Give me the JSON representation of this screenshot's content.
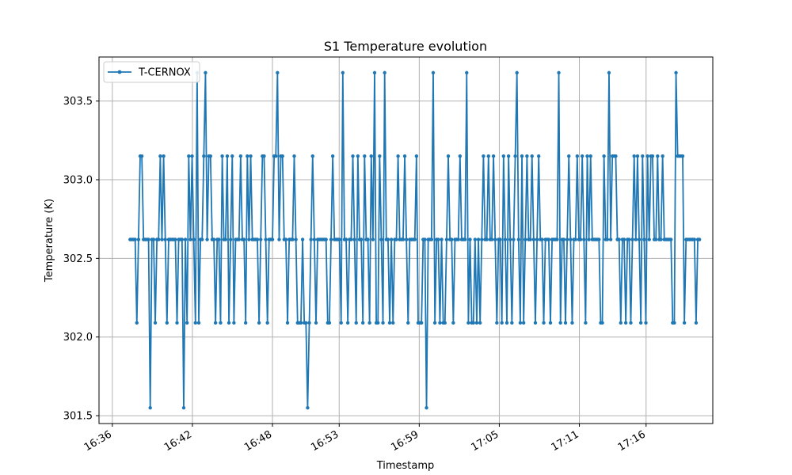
{
  "chart_data": {
    "type": "line",
    "title": "S1 Temperature evolution",
    "xlabel": "Timestamp",
    "ylabel": "Temperature (K)",
    "x_type": "time",
    "xlim": [
      "16:35:00",
      "17:21:00"
    ],
    "ylim": [
      301.45,
      303.78
    ],
    "x_ticks": [
      "16:36",
      "16:42",
      "16:48",
      "16:53",
      "16:59",
      "17:05",
      "17:11",
      "17:16"
    ],
    "y_ticks": [
      301.5,
      302.0,
      302.5,
      303.0,
      303.5
    ],
    "y_tick_labels": [
      "301.5",
      "302.0",
      "302.5",
      "303.0",
      "303.5"
    ],
    "grid": true,
    "legend": {
      "position": "top-left"
    },
    "series": [
      {
        "name": "T-CERNOX",
        "color": "#1f77b4",
        "marker": "dot",
        "x_start": "16:37:20",
        "x_end": "17:20:00",
        "values": [
          302.62,
          302.62,
          302.62,
          302.62,
          302.09,
          302.62,
          303.15,
          303.15,
          302.62,
          302.62,
          302.62,
          302.62,
          301.55,
          302.62,
          302.62,
          302.09,
          302.62,
          302.62,
          303.15,
          302.62,
          303.15,
          302.62,
          302.09,
          302.62,
          302.62,
          302.62,
          302.62,
          302.62,
          302.09,
          302.62,
          302.62,
          302.62,
          301.55,
          302.62,
          302.09,
          303.15,
          302.62,
          303.15,
          302.62,
          302.09,
          303.68,
          302.09,
          302.62,
          302.62,
          303.15,
          303.68,
          302.62,
          303.15,
          303.15,
          302.62,
          302.62,
          302.09,
          302.62,
          302.62,
          302.09,
          303.15,
          302.62,
          302.62,
          303.15,
          302.09,
          302.62,
          303.15,
          302.09,
          302.62,
          302.62,
          302.62,
          303.15,
          302.62,
          302.62,
          302.09,
          303.15,
          302.62,
          303.15,
          302.62,
          302.62,
          302.62,
          302.62,
          302.09,
          302.62,
          303.15,
          303.15,
          302.62,
          302.09,
          302.62,
          302.62,
          302.62,
          303.15,
          303.15,
          303.68,
          302.62,
          303.15,
          303.15,
          302.62,
          302.62,
          302.09,
          302.62,
          302.62,
          302.62,
          303.15,
          302.62,
          302.09,
          302.09,
          302.09,
          302.62,
          302.09,
          302.09,
          301.55,
          302.09,
          302.62,
          303.15,
          302.62,
          302.09,
          302.62,
          302.62,
          302.62,
          302.62,
          302.62,
          302.62,
          302.09,
          302.09,
          302.62,
          303.15,
          302.62,
          302.62,
          302.62,
          302.62,
          302.09,
          303.68,
          302.62,
          302.62,
          302.09,
          302.62,
          302.62,
          303.15,
          302.62,
          302.09,
          303.15,
          302.62,
          302.62,
          302.09,
          303.15,
          302.62,
          302.62,
          302.09,
          303.15,
          302.62,
          303.68,
          302.09,
          302.09,
          303.15,
          302.62,
          302.09,
          303.68,
          302.62,
          302.62,
          302.09,
          302.62,
          302.09,
          302.62,
          302.62,
          303.15,
          302.62,
          302.62,
          302.62,
          303.15,
          302.62,
          302.09,
          302.62,
          302.62,
          302.62,
          302.62,
          303.15,
          302.09,
          302.09,
          302.09,
          302.62,
          302.62,
          301.55,
          302.62,
          302.62,
          302.62,
          303.68,
          302.09,
          302.62,
          302.62,
          302.09,
          302.62,
          302.09,
          302.09,
          302.62,
          303.15,
          302.62,
          302.62,
          302.09,
          302.62,
          302.62,
          302.62,
          303.15,
          302.62,
          302.62,
          302.62,
          303.68,
          302.09,
          302.62,
          302.09,
          302.09,
          302.62,
          302.09,
          302.62,
          302.09,
          302.62,
          303.15,
          302.62,
          302.62,
          303.15,
          302.62,
          302.62,
          303.15,
          302.62,
          302.09,
          302.62,
          302.62,
          302.09,
          303.15,
          302.62,
          302.09,
          303.15,
          302.62,
          302.09,
          302.62,
          303.15,
          303.68,
          302.62,
          302.09,
          303.15,
          302.09,
          302.62,
          303.15,
          302.62,
          302.62,
          303.15,
          302.62,
          302.09,
          302.62,
          303.15,
          302.62,
          302.62,
          302.09,
          302.62,
          302.62,
          302.62,
          302.09,
          302.62,
          302.62,
          302.62,
          302.62,
          303.68,
          302.09,
          302.62,
          302.62,
          302.09,
          302.62,
          303.15,
          302.62,
          302.09,
          302.62,
          302.62,
          303.15,
          302.62,
          302.62,
          303.15,
          302.62,
          302.09,
          303.15,
          302.62,
          303.15,
          302.62,
          302.62,
          302.62,
          302.62,
          302.62,
          302.09,
          302.09,
          303.15,
          302.62,
          302.62,
          303.68,
          302.62,
          303.15,
          303.15,
          303.15,
          302.62,
          302.62,
          302.09,
          302.62,
          302.62,
          302.09,
          302.62,
          302.62,
          302.09,
          302.62,
          303.15,
          302.62,
          303.15,
          302.62,
          302.09,
          303.15,
          302.62,
          302.09,
          303.15,
          302.62,
          303.15,
          303.15,
          302.62,
          302.62,
          303.15,
          302.62,
          302.62,
          303.15,
          302.62,
          302.62,
          302.62,
          302.62,
          302.62,
          302.09,
          302.09,
          303.68,
          303.15,
          303.15,
          303.15,
          303.15,
          302.09,
          302.62,
          302.62,
          302.62,
          302.62,
          302.62,
          302.62,
          302.09,
          302.62,
          302.62
        ]
      }
    ]
  }
}
